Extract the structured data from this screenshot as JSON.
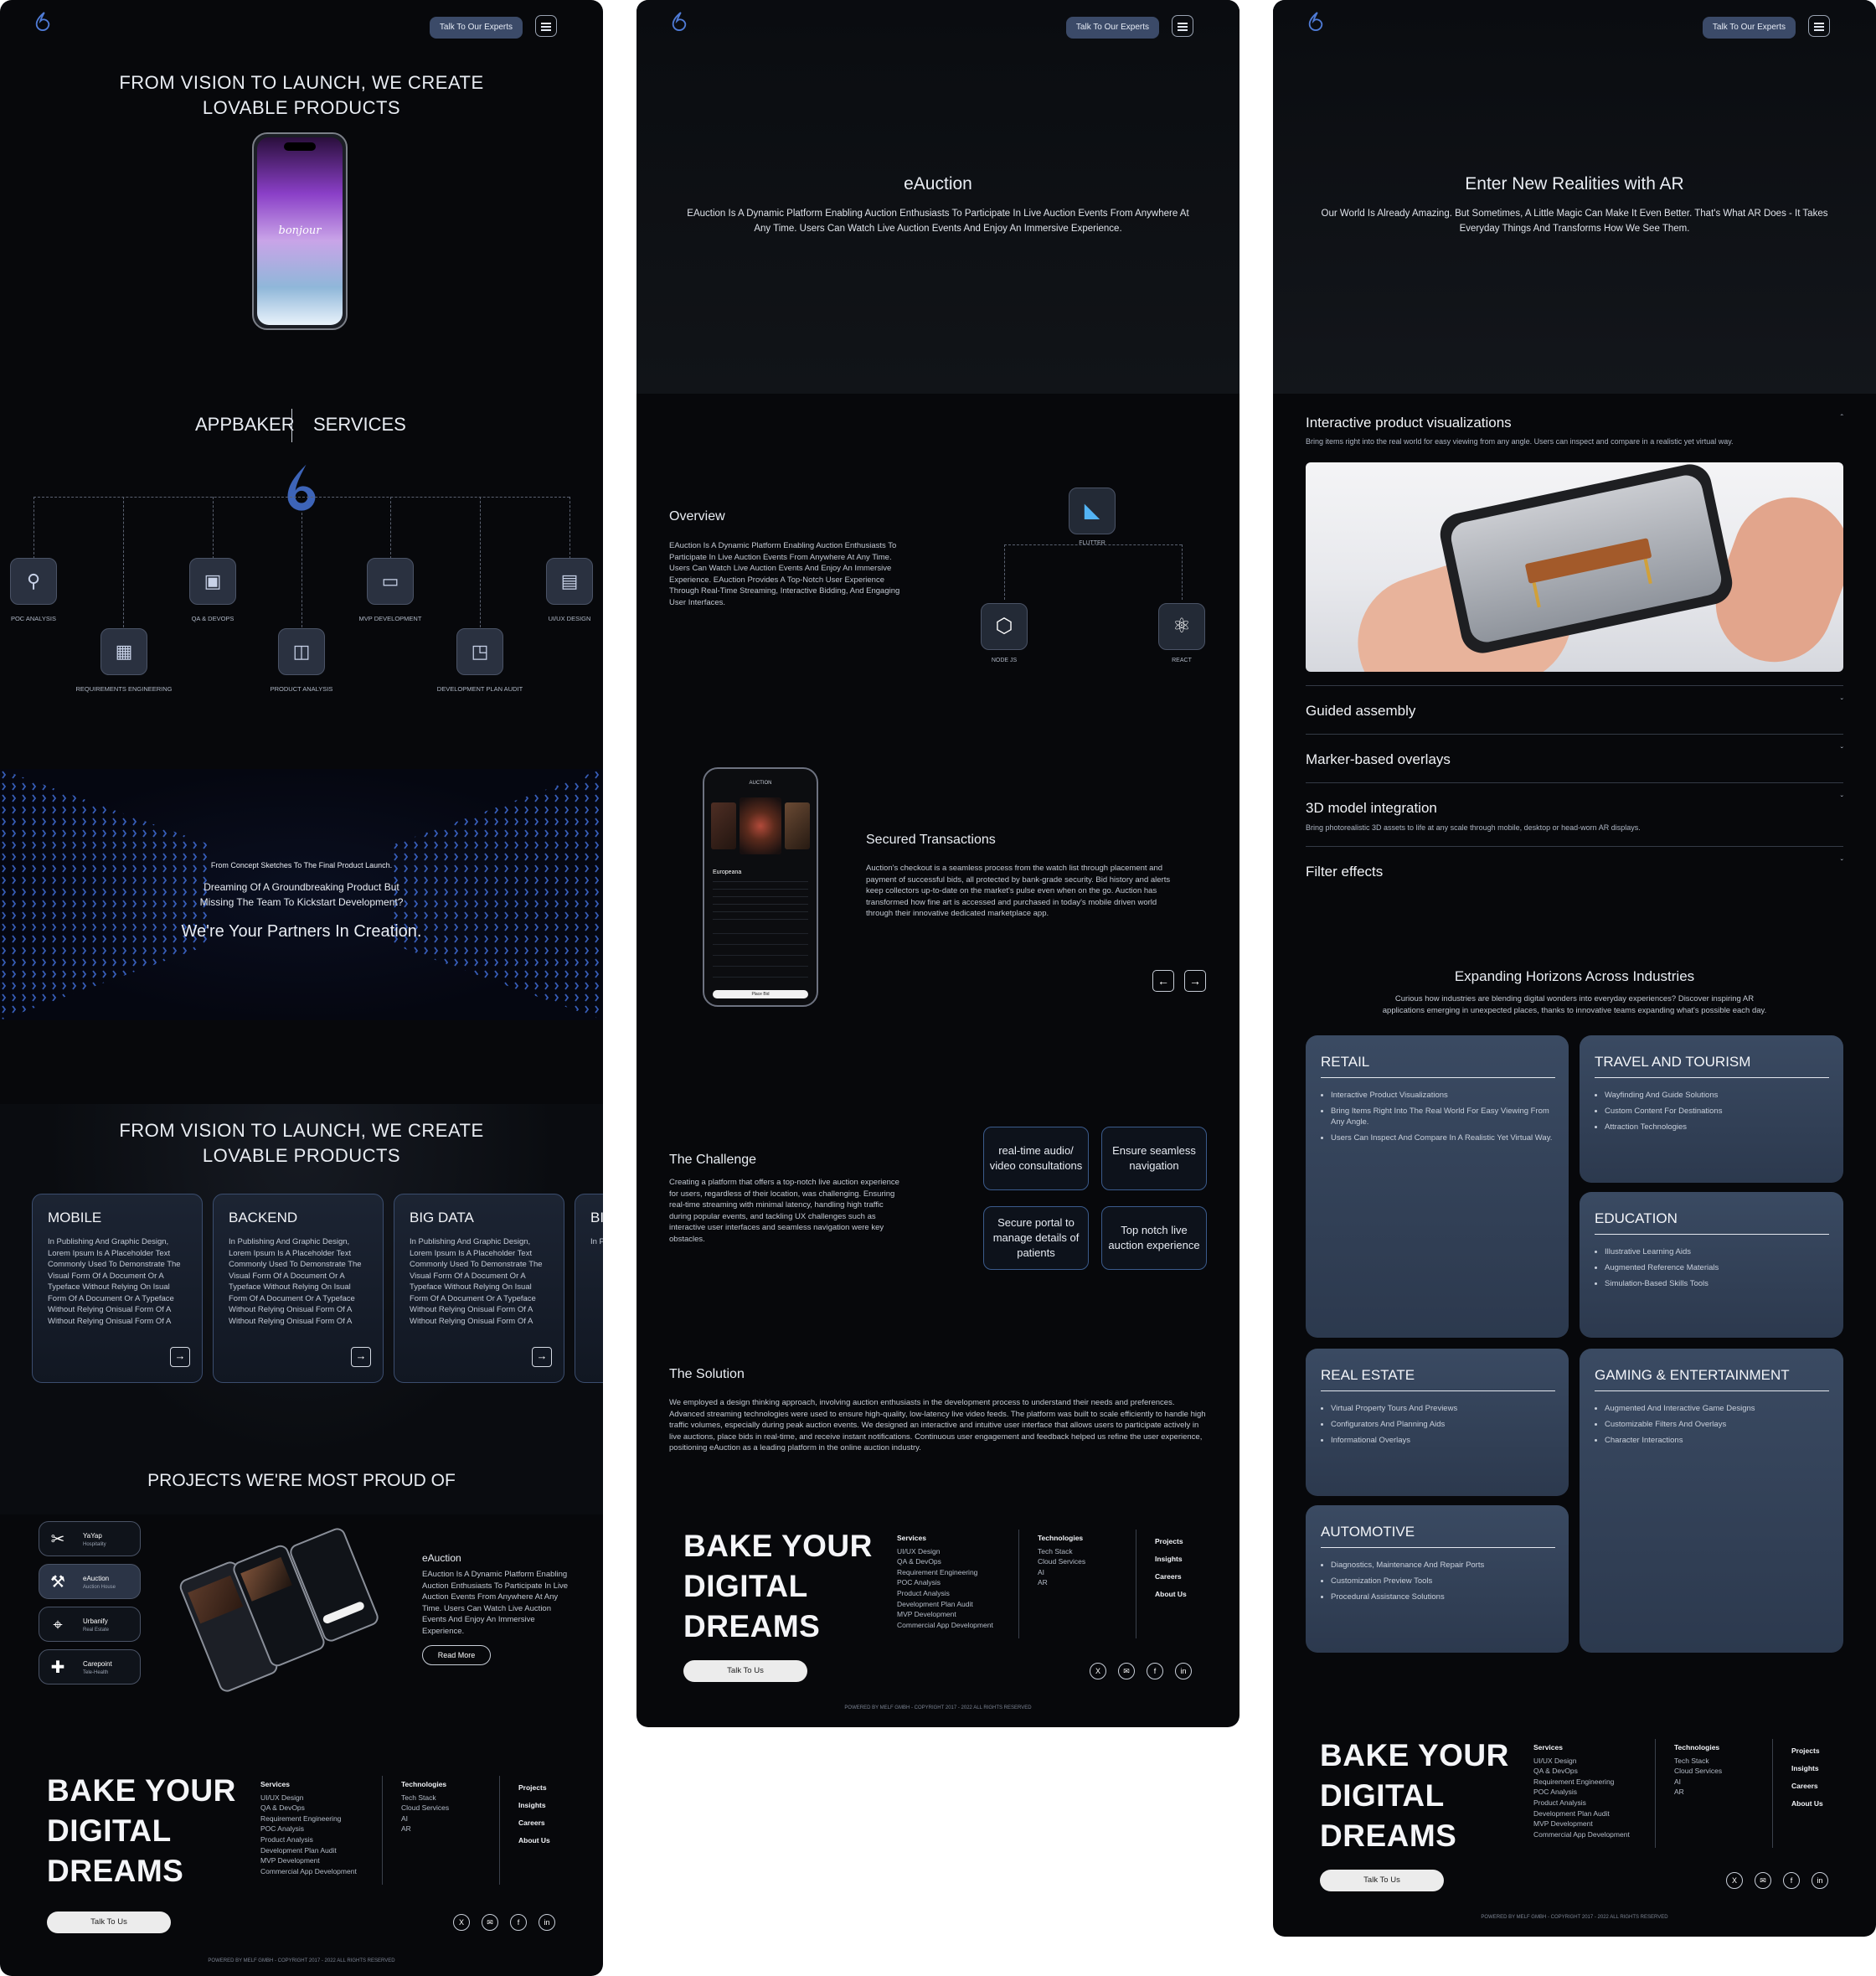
{
  "header": {
    "cta_label": "Talk To Our Experts"
  },
  "home": {
    "hero_title_1": "FROM VISION TO LAUNCH, WE CREATE",
    "hero_title_2": "LOVABLE PRODUCTS",
    "phone_text": "bonjour",
    "services_left": "APPBAKER",
    "services_right": "SERVICES",
    "services": [
      "POC ANALYSIS",
      "QA & DEVOPS",
      "MVP DEVELOPMENT",
      "UI/UX DESIGN",
      "REQUIREMENTS ENGINEERING",
      "PRODUCT ANALYSIS",
      "DEVELOPMENT PLAN AUDIT"
    ],
    "partners_small": "From Concept Sketches To The Final Product Launch.",
    "partners_mid_1": "Dreaming Of A Groundbreaking Product But",
    "partners_mid_2": "Missing The Team To Kickstart Development?",
    "partners_big": "We're Your Partners In Creation.",
    "vision_title_1": "FROM VISION TO LAUNCH, WE CREATE",
    "vision_title_2": "LOVABLE PRODUCTS",
    "cards": [
      {
        "title": "MOBILE",
        "text": "In Publishing And Graphic Design, Lorem Ipsum Is A Placeholder Text Commonly Used To Demonstrate The Visual Form Of A Document Or A Typeface Without Relying On Isual Form Of A Document Or A Typeface Without Relying Onisual Form Of A Without Relying Onisual Form Of A"
      },
      {
        "title": "BACKEND",
        "text": "In Publishing And Graphic Design, Lorem Ipsum Is A Placeholder Text Commonly Used To Demonstrate The Visual Form Of A Document Or A Typeface Without Relying On Isual Form Of A Document Or A Typeface Without Relying Onisual Form Of A Without Relying Onisual Form Of A"
      },
      {
        "title": "BIG DATA",
        "text": "In Publishing And Graphic Design, Lorem Ipsum Is A Placeholder Text Commonly Used To Demonstrate The Visual Form Of A Document Or A Typeface Without Relying On Isual Form Of A Document Or A Typeface Without Relying Onisual Form Of A Without Relying Onisual Form Of A"
      },
      {
        "title": "BI",
        "text": "In P Lor Con Vis Typ For Wit Wit"
      }
    ],
    "projects_title": "PROJECTS WE'RE MOST PROUD OF",
    "projects": [
      {
        "name": "YaYap",
        "sub": "Hospitality"
      },
      {
        "name": "eAuction",
        "sub": "Auction House"
      },
      {
        "name": "Urbanify",
        "sub": "Real Estate"
      },
      {
        "name": "Carepoint",
        "sub": "Tele-Health"
      }
    ],
    "featured_title": "eAuction",
    "featured_text": "EAuction Is A Dynamic Platform Enabling Auction Enthusiasts To Participate In Live Auction Events From Anywhere At Any Time. Users Can Watch Live Auction Events And Enjoy An Immersive Experience.",
    "read_more": "Read More"
  },
  "eauction": {
    "title": "eAuction",
    "intro": "EAuction Is A Dynamic Platform Enabling Auction Enthusiasts To Participate In Live Auction Events From Anywhere At Any Time. Users Can Watch Live Auction Events And Enjoy An Immersive Experience.",
    "overview_title": "Overview",
    "overview_text": "EAuction Is A Dynamic Platform Enabling Auction Enthusiasts To Participate In Live Auction Events From Anywhere At Any Time. Users Can Watch Live Auction Events And Enjoy An Immersive Experience. EAuction Provides A Top-Notch User Experience Through Real-Time Streaming, Interactive Bidding, And Engaging User Interfaces.",
    "tech": [
      "FLUTTER",
      "NODE JS",
      "REACT"
    ],
    "phone_header": "AUCTION",
    "phone_title": "Europeana",
    "phone_button": "Place Bid",
    "secured_title": "Secured Transactions",
    "secured_text": "Auction's checkout is a seamless process from the watch list through placement and payment of successful bids, all protected by bank-grade security. Bid history and alerts keep collectors up-to-date on the market's pulse even when on the go. Auction has transformed how fine art is accessed and purchased in today's mobile driven world through their innovative dedicated marketplace app.",
    "challenge_title": "The Challenge",
    "challenge_text": "Creating a platform that offers a top-notch live auction experience for users, regardless of their location, was challenging. Ensuring real-time streaming with minimal latency, handling high traffic during popular events, and tackling UX challenges such as interactive user interfaces and seamless navigation were key obstacles.",
    "chips": [
      "real-time audio/ video consultations",
      "Ensure seamless navigation",
      "Secure portal to manage details of patients",
      "Top notch live auction experience"
    ],
    "solution_title": "The Solution",
    "solution_text": "We employed a design thinking approach, involving auction enthusiasts in the development process to understand their needs and preferences. Advanced streaming technologies were used to ensure high-quality, low-latency live video feeds. The platform was built to scale efficiently to handle high traffic volumes, especially during peak auction events. We designed an interactive and intuitive user interface that allows users to participate actively in live auctions, place bids in real-time, and receive instant notifications. Continuous user engagement and feedback helped us refine the user experience, positioning eAuction as a leading platform in the online auction industry."
  },
  "ar": {
    "title": "Enter New Realities with AR",
    "intro": "Our World Is Already Amazing. But Sometimes, A Little Magic Can Make It Even Better. That's What AR Does - It Takes Everyday Things And Transforms How We See Them.",
    "accordion": [
      {
        "title": "Interactive product visualizations",
        "desc": "Bring items right into the real world for easy viewing from any angle. Users can inspect and compare in a realistic yet virtual way."
      },
      {
        "title": "Guided assembly",
        "desc": ""
      },
      {
        "title": "Marker-based overlays",
        "desc": ""
      },
      {
        "title": "3D model integration",
        "desc": "Bring photorealistic 3D assets to life at any scale through mobile, desktop or head-worn AR displays."
      },
      {
        "title": "Filter effects",
        "desc": ""
      }
    ],
    "industries_title": "Expanding Horizons Across Industries",
    "industries_intro": "Curious how industries are blending digital wonders into everyday experiences? Discover inspiring AR applications emerging in unexpected places, thanks to innovative teams expanding what's possible each day.",
    "industries": [
      {
        "title": "RETAIL",
        "items": [
          "Interactive Product Visualizations",
          "Bring Items Right Into The Real World For Easy Viewing From Any Angle.",
          "Users Can Inspect And Compare In A Realistic Yet Virtual Way."
        ]
      },
      {
        "title": "TRAVEL AND TOURISM",
        "items": [
          "Wayfinding And Guide Solutions",
          "Custom Content For Destinations",
          "Attraction Technologies"
        ]
      },
      {
        "title": "EDUCATION",
        "items": [
          "Illustrative Learning Aids",
          "Augmented Reference Materials",
          "Simulation-Based Skills Tools"
        ]
      },
      {
        "title": "REAL ESTATE",
        "items": [
          "Virtual Property Tours And Previews",
          "Configurators And Planning Aids",
          "Informational Overlays"
        ]
      },
      {
        "title": "GAMING & ENTERTAINMENT",
        "items": [
          "Augmented And Interactive Game Designs",
          "Customizable Filters And Overlays",
          "Character Interactions"
        ]
      },
      {
        "title": "AUTOMOTIVE",
        "items": [
          "Diagnostics, Maintenance And Repair Ports",
          "Customization Preview Tools",
          "Procedural Assistance Solutions"
        ]
      }
    ]
  },
  "footer": {
    "line1": "BAKE YOUR",
    "line2": "DIGITAL",
    "line3": "DREAMS",
    "talk": "Talk To Us",
    "services_title": "Services",
    "services": [
      "UI/UX Design",
      "QA & DevOps",
      "Requirement Engineering",
      "POC Analysis",
      "Product Analysis",
      "Development Plan Audit",
      "MVP Development",
      "Commercial App Development"
    ],
    "tech_title": "Technologies",
    "tech": [
      "Tech Stack",
      "Cloud Services",
      "AI",
      "AR"
    ],
    "links": [
      "Projects",
      "Insights",
      "Careers",
      "About Us"
    ],
    "social": [
      "x-icon",
      "mail-icon",
      "facebook-icon",
      "linkedin-icon"
    ],
    "copyright": "POWERED BY MELF GMBH - COPYRIGHT 2017 - 2022 ALL RIGHTS RESERVED"
  },
  "colors": {
    "background": "#07080b",
    "accent": "#4f7bd6",
    "card_border": "#3b4d6e",
    "industry_card": "#3a4a62"
  }
}
